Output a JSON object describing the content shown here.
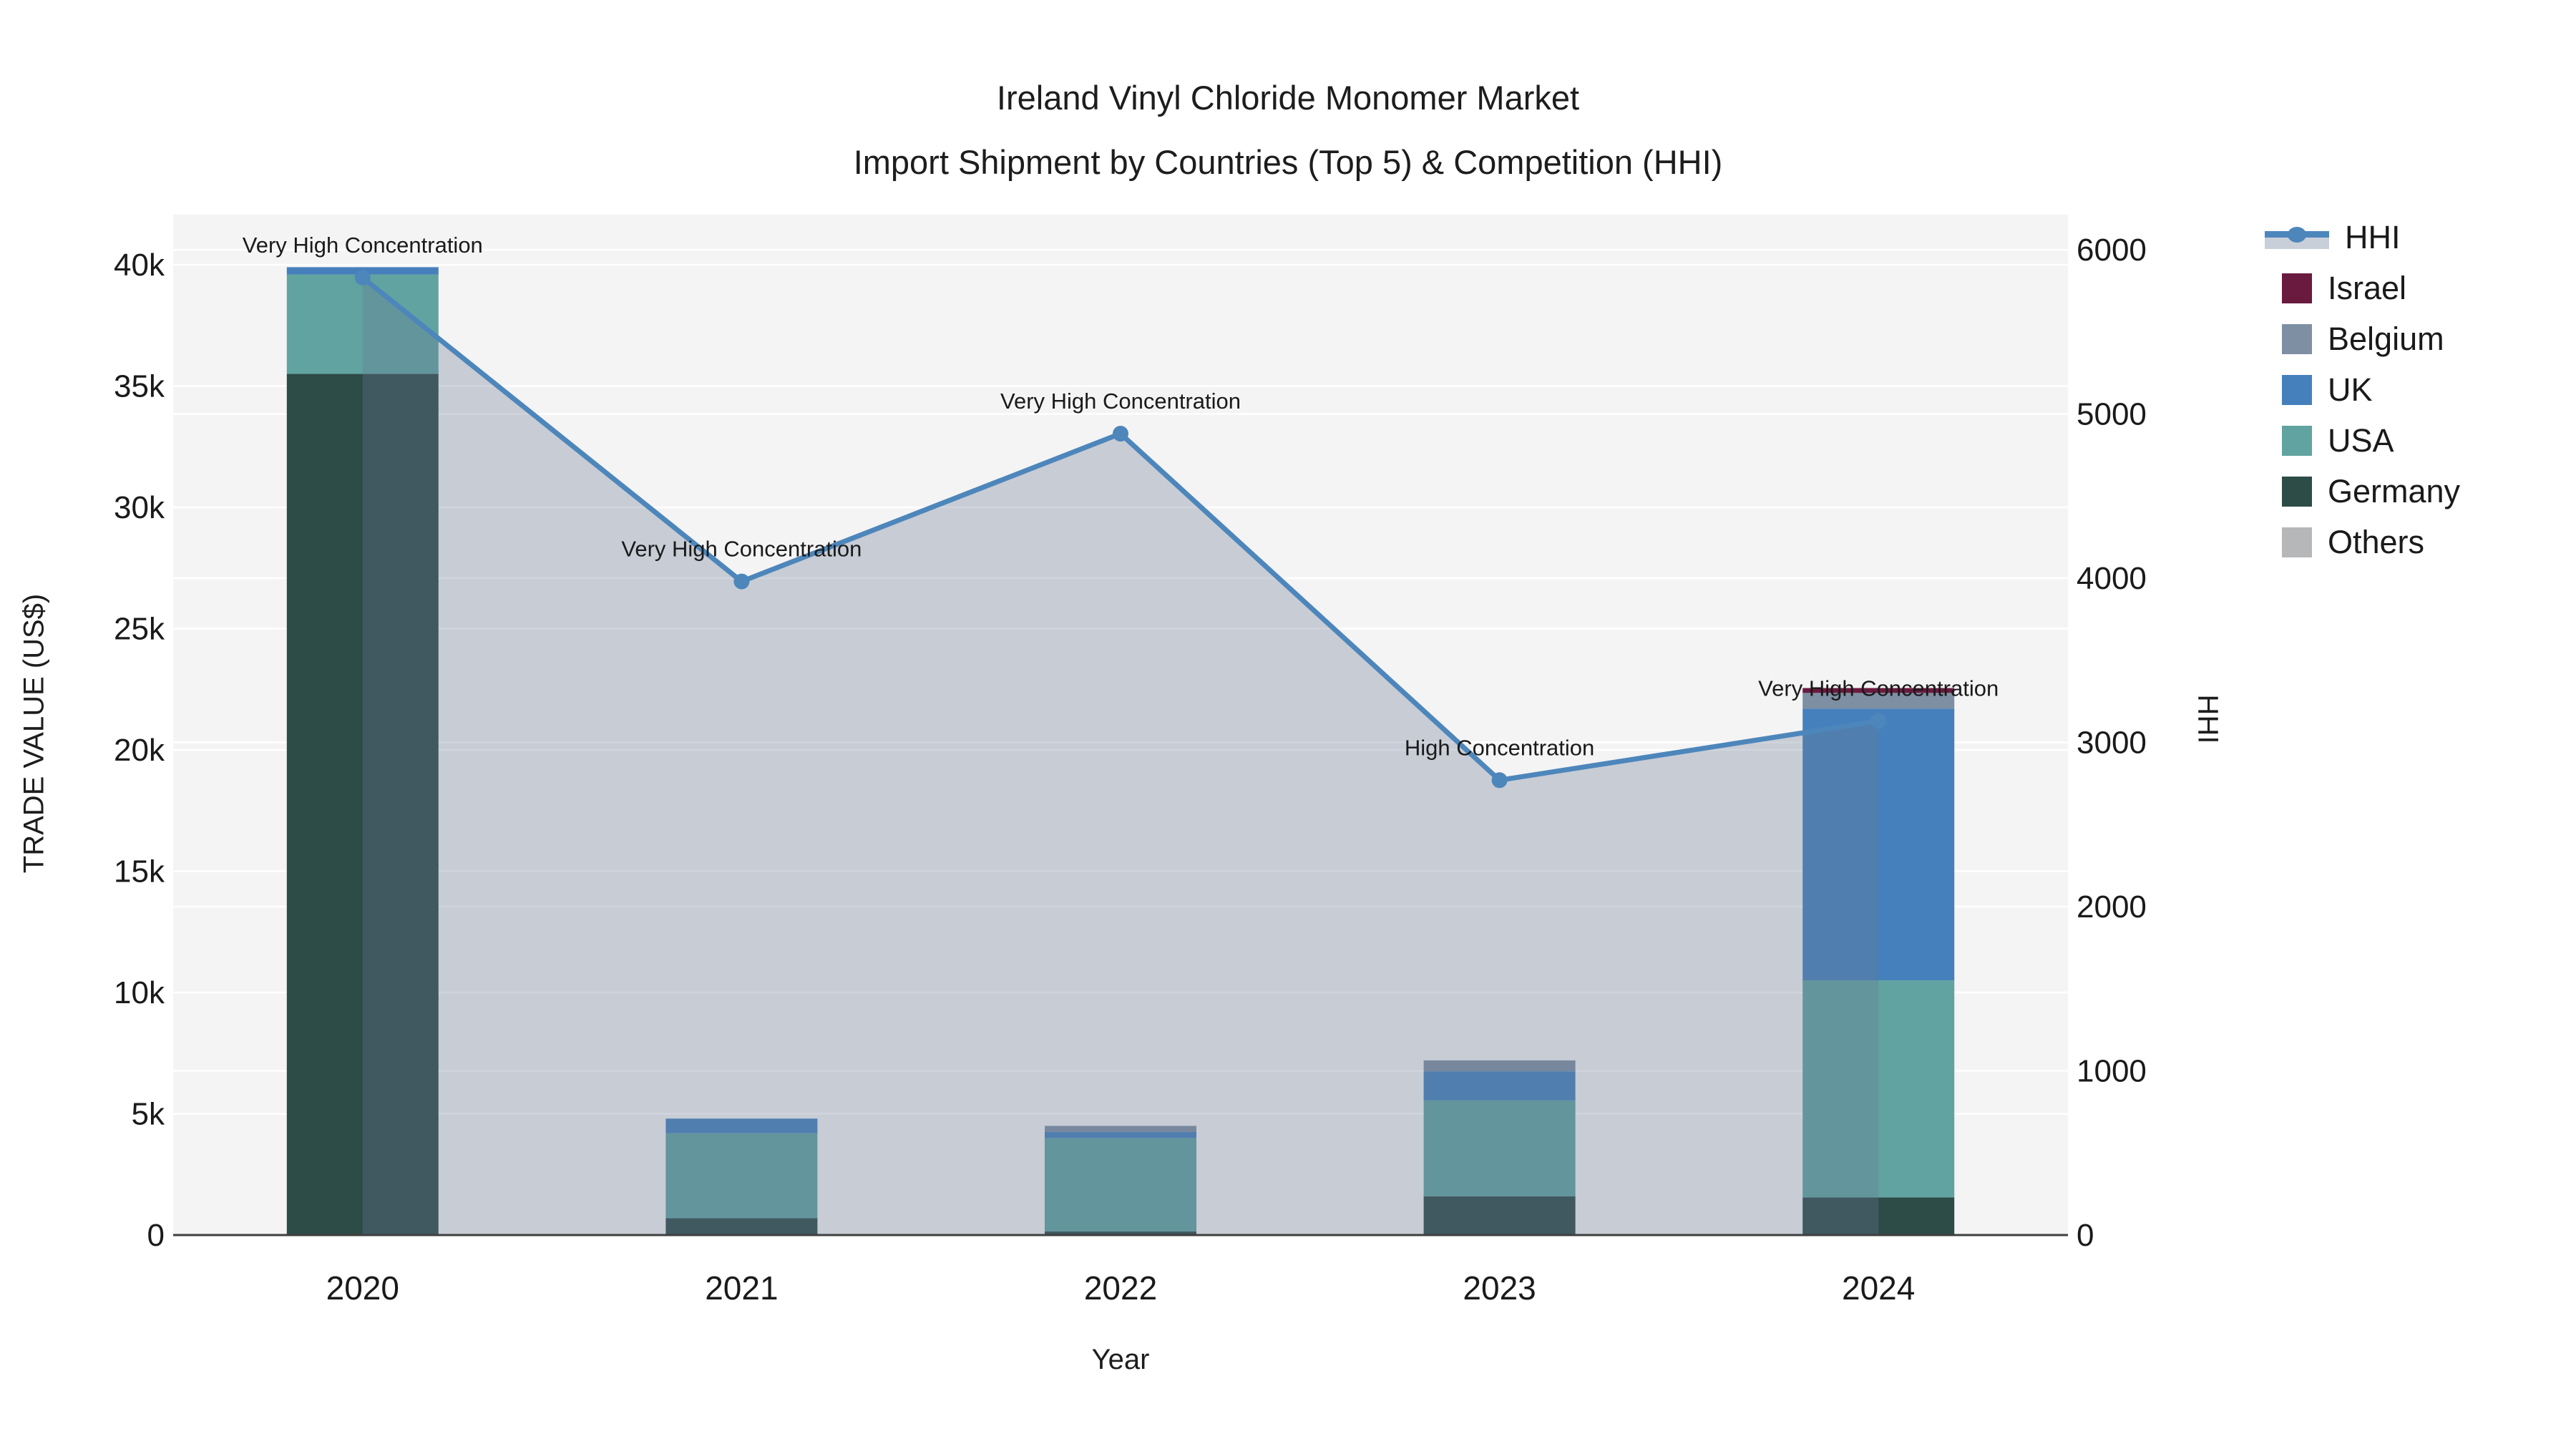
{
  "title": {
    "line1": "Ireland Vinyl Chloride Monomer Market",
    "line2": "Import Shipment by Countries (Top 5) & Competition (HHI)"
  },
  "axes": {
    "x": {
      "label": "Year",
      "categories": [
        "2020",
        "2021",
        "2022",
        "2023",
        "2024"
      ]
    },
    "y_left": {
      "label": "TRADE VALUE (US$)",
      "tick_values": [
        0,
        5000,
        10000,
        15000,
        20000,
        25000,
        30000,
        35000,
        40000
      ],
      "tick_labels": [
        "0",
        "5k",
        "10k",
        "15k",
        "20k",
        "25k",
        "30k",
        "35k",
        "40k"
      ],
      "max": 40000
    },
    "y_right": {
      "label": "HHI",
      "tick_values": [
        0,
        1000,
        2000,
        3000,
        4000,
        5000,
        6000
      ],
      "tick_labels": [
        "0",
        "1000",
        "2000",
        "3000",
        "4000",
        "5000",
        "6000"
      ],
      "max": 6000
    }
  },
  "colors": {
    "plot_background": "#F4F4F4",
    "gridline": "#FFFFFF",
    "axis_line": "#3F3F3F",
    "hhi_line": "#4D86BB",
    "hhi_fill": "rgba(105,122,150,0.32)",
    "annotation_text": "#1a1a1a"
  },
  "legend": [
    {
      "label": "HHI",
      "type": "line",
      "color": "#4D86BB",
      "fill": "#C9CFD8"
    },
    {
      "label": "Israel",
      "type": "bar",
      "color": "#6A1A3F"
    },
    {
      "label": "Belgium",
      "type": "bar",
      "color": "#7E8FA3"
    },
    {
      "label": "UK",
      "type": "bar",
      "color": "#4580BC"
    },
    {
      "label": "USA",
      "type": "bar",
      "color": "#61A3A1"
    },
    {
      "label": "Germany",
      "type": "bar",
      "color": "#2D4B47"
    },
    {
      "label": "Others",
      "type": "bar",
      "color": "#B5B7B9"
    }
  ],
  "chart_data": {
    "type": "bar",
    "subtype": "stacked-bars-with-line",
    "title": "Ireland Vinyl Chloride Monomer Market — Import Shipment by Countries (Top 5) & Competition (HHI)",
    "xlabel": "Year",
    "ylabel_left": "TRADE VALUE (US$)",
    "ylabel_right": "HHI",
    "ylim_left": [
      0,
      40000
    ],
    "ylim_right": [
      0,
      6000
    ],
    "grid": true,
    "legend_position": "right",
    "categories": [
      "2020",
      "2021",
      "2022",
      "2023",
      "2024"
    ],
    "series": [
      {
        "name": "Germany",
        "type": "bar",
        "color": "#2D4B47",
        "values": [
          35500,
          700,
          150,
          1600,
          1550
        ]
      },
      {
        "name": "USA",
        "type": "bar",
        "color": "#61A3A1",
        "values": [
          4100,
          3500,
          3850,
          3950,
          8950
        ]
      },
      {
        "name": "UK",
        "type": "bar",
        "color": "#4580BC",
        "values": [
          300,
          600,
          250,
          1200,
          11200
        ]
      },
      {
        "name": "Belgium",
        "type": "bar",
        "color": "#7E8FA3",
        "values": [
          0,
          0,
          250,
          450,
          650
        ]
      },
      {
        "name": "Israel",
        "type": "bar",
        "color": "#6A1A3F",
        "values": [
          0,
          0,
          0,
          0,
          200
        ]
      },
      {
        "name": "Others",
        "type": "bar",
        "color": "#B5B7B9",
        "values": [
          0,
          0,
          0,
          0,
          0
        ]
      }
    ],
    "bar_totals": [
      39900,
      4800,
      4500,
      7200,
      22550
    ],
    "line_series": {
      "name": "HHI",
      "axis": "right",
      "color": "#4D86BB",
      "fill_to_zero": true,
      "values": [
        5830,
        3980,
        4880,
        2770,
        3130
      ]
    },
    "annotations": [
      {
        "category": "2020",
        "text": "Very High Concentration"
      },
      {
        "category": "2021",
        "text": "Very High Concentration"
      },
      {
        "category": "2022",
        "text": "Very High Concentration"
      },
      {
        "category": "2023",
        "text": "High Concentration"
      },
      {
        "category": "2024",
        "text": "Very High Concentration"
      }
    ]
  }
}
